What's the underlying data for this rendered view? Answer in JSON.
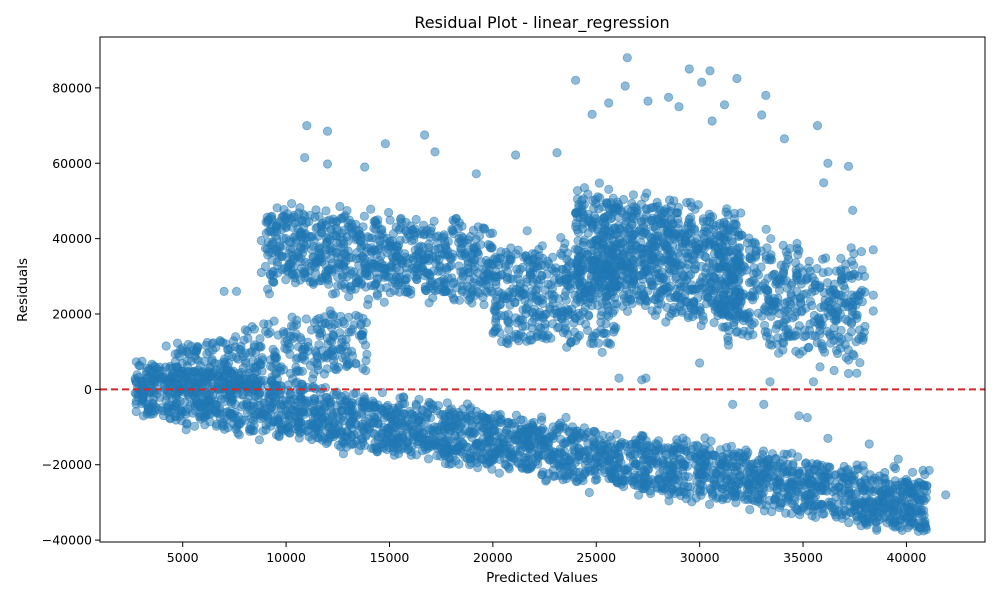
{
  "chart_data": {
    "type": "scatter",
    "title": "Residual Plot - linear_regression",
    "xlabel": "Predicted Values",
    "ylabel": "Residuals",
    "xlim": [
      1000,
      43800
    ],
    "ylim": [
      -40500,
      93500
    ],
    "xticks": [
      5000,
      10000,
      15000,
      20000,
      25000,
      30000,
      35000,
      40000
    ],
    "xtick_labels": [
      "5000",
      "10000",
      "15000",
      "20000",
      "25000",
      "30000",
      "35000",
      "40000"
    ],
    "yticks": [
      -40000,
      -20000,
      0,
      20000,
      40000,
      60000,
      80000
    ],
    "ytick_labels": [
      "−40000",
      "−20000",
      "0",
      "20000",
      "40000",
      "60000",
      "80000"
    ],
    "grid": false,
    "reference_line": {
      "y": 0,
      "style": "dashed",
      "color": "#d62728"
    },
    "marker_color": "#1f77b4",
    "marker_alpha": 0.5,
    "series": [
      {
        "bands": [
          {
            "x_range": [
              2700,
              41000
            ],
            "y_at_start": 500,
            "y_at_end": -31000,
            "spread": 8000,
            "count": 2600
          },
          {
            "x_range": [
              4500,
              14000
            ],
            "y_at_start": 3000,
            "y_at_end": 14000,
            "spread": 9000,
            "count": 380
          },
          {
            "x_range": [
              9000,
              20000
            ],
            "y_at_start": 38000,
            "y_at_end": 33000,
            "spread": 11000,
            "count": 750
          },
          {
            "x_range": [
              20000,
              26000
            ],
            "y_at_start": 25000,
            "y_at_end": 25000,
            "spread": 14000,
            "count": 420
          },
          {
            "x_range": [
              24000,
              32000
            ],
            "y_at_start": 38000,
            "y_at_end": 32000,
            "spread": 16000,
            "count": 900
          },
          {
            "x_range": [
              31000,
              38000
            ],
            "y_at_start": 28000,
            "y_at_end": 20000,
            "spread": 15000,
            "count": 450
          }
        ],
        "points": [
          [
            26500,
            88000
          ],
          [
            29500,
            85000
          ],
          [
            30500,
            84500
          ],
          [
            31800,
            82500
          ],
          [
            30100,
            81500
          ],
          [
            26400,
            80500
          ],
          [
            24000,
            82000
          ],
          [
            33200,
            78000
          ],
          [
            28500,
            77500
          ],
          [
            27500,
            76500
          ],
          [
            25600,
            76000
          ],
          [
            31200,
            75500
          ],
          [
            24800,
            73000
          ],
          [
            29000,
            75000
          ],
          [
            33000,
            72800
          ],
          [
            30600,
            71200
          ],
          [
            11000,
            70000
          ],
          [
            12000,
            68500
          ],
          [
            16700,
            67500
          ],
          [
            23100,
            62800
          ],
          [
            34100,
            66500
          ],
          [
            35700,
            70000
          ],
          [
            21100,
            62200
          ],
          [
            19200,
            57200
          ],
          [
            17200,
            63000
          ],
          [
            14800,
            65200
          ],
          [
            10900,
            61500
          ],
          [
            12000,
            59800
          ],
          [
            13800,
            59000
          ],
          [
            36000,
            54800
          ],
          [
            37200,
            59200
          ],
          [
            36200,
            60000
          ],
          [
            37400,
            47500
          ],
          [
            38400,
            37000
          ],
          [
            38400,
            25000
          ],
          [
            38400,
            20800
          ],
          [
            37200,
            7800
          ],
          [
            37200,
            4200
          ],
          [
            8800,
            39500
          ],
          [
            8800,
            31000
          ],
          [
            7000,
            26000
          ],
          [
            7600,
            26000
          ],
          [
            4200,
            11500
          ],
          [
            5000,
            11000
          ],
          [
            3000,
            1500
          ],
          [
            2700,
            -1000
          ],
          [
            41900,
            -28000
          ],
          [
            40900,
            -35000
          ],
          [
            40800,
            -21500
          ],
          [
            41100,
            -21500
          ],
          [
            40300,
            -22000
          ],
          [
            39600,
            -18500
          ],
          [
            39400,
            -20500
          ],
          [
            39000,
            -31500
          ],
          [
            38700,
            -30500
          ],
          [
            38700,
            -23000
          ],
          [
            38200,
            -14500
          ],
          [
            35200,
            -7500
          ],
          [
            36200,
            -13000
          ],
          [
            34800,
            -7000
          ],
          [
            33100,
            -4000
          ],
          [
            31600,
            -4000
          ],
          [
            27400,
            3000
          ],
          [
            26100,
            3000
          ],
          [
            35500,
            2000
          ],
          [
            36500,
            5000
          ],
          [
            33400,
            2000
          ],
          [
            30000,
            7000
          ],
          [
            27200,
            2500
          ],
          [
            12500,
            -7500
          ]
        ]
      }
    ]
  }
}
